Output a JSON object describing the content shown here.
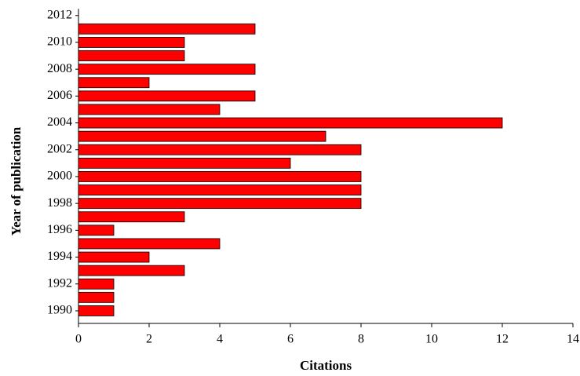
{
  "chart_data": {
    "type": "hbar",
    "categories": [
      "1990",
      null,
      "1992",
      null,
      "1994",
      null,
      "1996",
      null,
      "1998",
      null,
      "2000",
      null,
      "2002",
      null,
      "2004",
      null,
      "2006",
      null,
      "2008",
      null,
      "2010",
      null,
      "2012"
    ],
    "values": [
      1,
      1,
      1,
      3,
      2,
      4,
      1,
      3,
      8,
      8,
      8,
      6,
      8,
      7,
      12,
      4,
      5,
      2,
      5,
      3,
      3,
      5,
      null
    ],
    "color": "#ff0000",
    "xlim": [
      0,
      14
    ],
    "xticks": [
      0,
      2,
      4,
      6,
      8,
      10,
      12,
      14
    ],
    "x_label": "Citations",
    "y_label": "Year of publication",
    "grid": false
  }
}
